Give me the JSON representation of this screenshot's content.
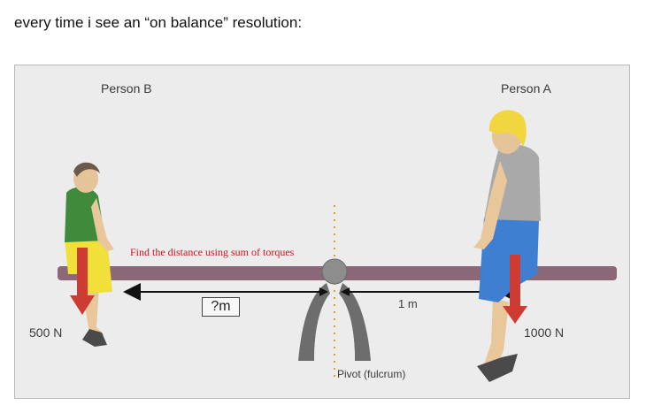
{
  "post": {
    "caption": "every time i see an “on balance” resolution:"
  },
  "diagram": {
    "person_b_label": "Person B",
    "person_a_label": "Person A",
    "annotation": "Find the distance using sum of torques",
    "unknown_distance": "?m",
    "known_distance": "1 m",
    "force_b": "500 N",
    "force_a": "1000 N",
    "pivot_label": "Pivot (fulcrum)",
    "colors": {
      "plank": "#8a6877",
      "force_arrow": "#cd3b33",
      "annotation_text": "#c8161d",
      "fulcrum": "#666666",
      "background": "#ececed"
    }
  }
}
